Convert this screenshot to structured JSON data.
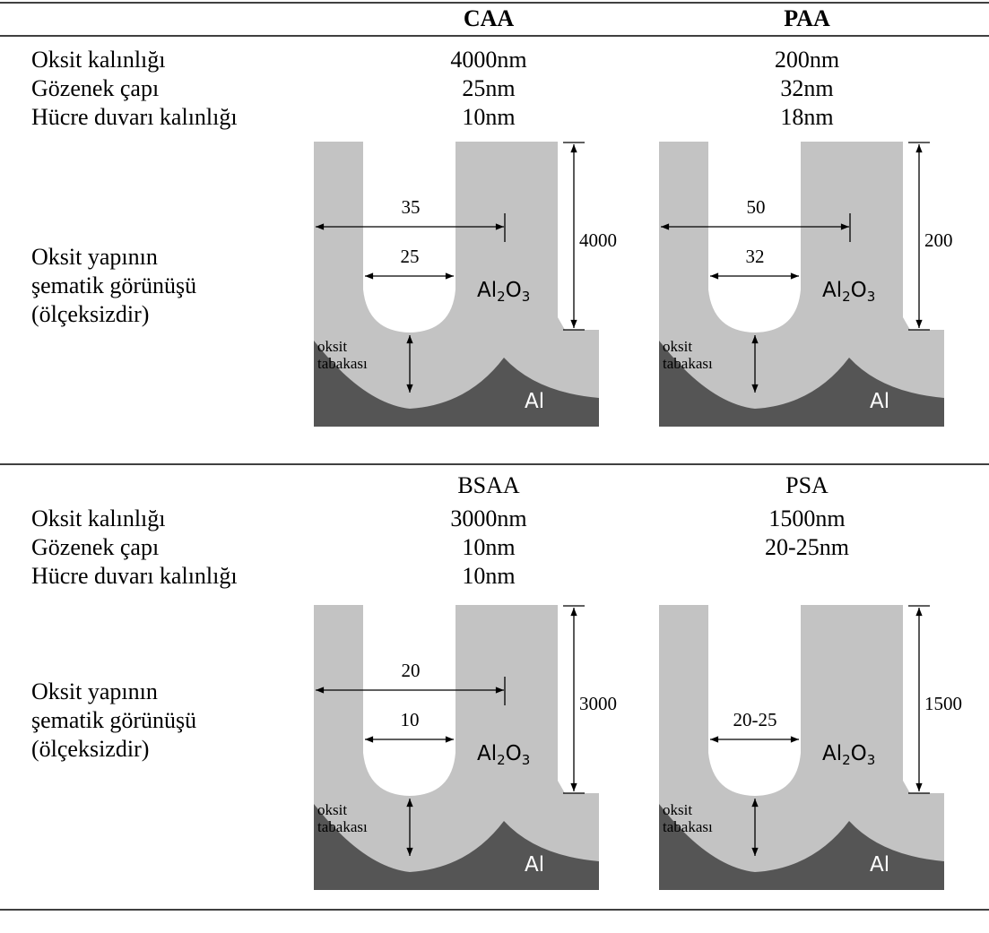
{
  "tables": [
    {
      "columns": [
        "CAA",
        "PAA"
      ],
      "rows": [
        {
          "label": "Oksit kalınlığı",
          "values": [
            "4000nm",
            "200nm"
          ]
        },
        {
          "label": "Gözenek çapı",
          "values": [
            "25nm",
            "32nm"
          ]
        },
        {
          "label": "Hücre duvarı kalınlığı",
          "values": [
            "10nm",
            "18nm"
          ]
        }
      ],
      "side_label": [
        "Oksit yapının",
        "şematik görünüşü",
        "(ölçeksizdir)"
      ],
      "diagrams": [
        {
          "outer_width": "35",
          "pore_diameter": "25",
          "height": "4000",
          "oxide": [
            "Al",
            "2",
            "O",
            "3"
          ],
          "layer_label": [
            "oksit",
            "tabakası"
          ],
          "metal": "Al"
        },
        {
          "outer_width": "50",
          "pore_diameter": "32",
          "height": "200",
          "oxide": [
            "Al",
            "2",
            "O",
            "3"
          ],
          "layer_label": [
            "oksit",
            "tabakası"
          ],
          "metal": "Al"
        }
      ]
    },
    {
      "columns": [
        "BSAA",
        "PSA"
      ],
      "rows": [
        {
          "label": "Oksit kalınlığı",
          "values": [
            "3000nm",
            "1500nm"
          ]
        },
        {
          "label": "Gözenek çapı",
          "values": [
            "10nm",
            "20-25nm"
          ]
        },
        {
          "label": "Hücre duvarı kalınlığı",
          "values": [
            "10nm",
            null
          ]
        }
      ],
      "side_label": [
        "Oksit yapının",
        "şematik görünüşü",
        "(ölçeksizdir)"
      ],
      "diagrams": [
        {
          "outer_width": "20",
          "pore_diameter": "10",
          "height": "3000",
          "oxide": [
            "Al",
            "2",
            "O",
            "3"
          ],
          "layer_label": [
            "oksit",
            "tabakası"
          ],
          "metal": "Al"
        },
        {
          "pore_diameter": "20-25",
          "height": "1500",
          "oxide": [
            "Al",
            "2",
            "O",
            "3"
          ],
          "layer_label": [
            "oksit",
            "tabakası"
          ],
          "metal": "Al"
        }
      ]
    }
  ]
}
